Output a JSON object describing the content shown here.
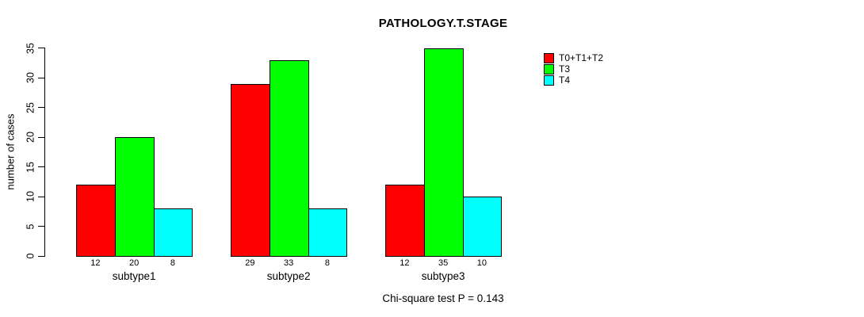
{
  "chart_data": {
    "type": "bar",
    "grouped": true,
    "title": "PATHOLOGY.T.STAGE",
    "categories": [
      "subtype1",
      "subtype2",
      "subtype3"
    ],
    "series": [
      {
        "name": "T0+T1+T2",
        "color": "#FF0000",
        "values": [
          12,
          29,
          12
        ]
      },
      {
        "name": "T3",
        "color": "#00FF00",
        "values": [
          20,
          33,
          35
        ]
      },
      {
        "name": "T4",
        "color": "#00FFFF",
        "values": [
          8,
          8,
          10
        ]
      }
    ],
    "xlabel": "",
    "ylabel": "number of cases",
    "ylim": [
      0,
      35
    ],
    "yticks": [
      0,
      5,
      10,
      15,
      20,
      25,
      30,
      35
    ],
    "bar_value_labels": true,
    "grid": false,
    "legend_position": "right",
    "annotation": "Chi-square test P = 0.143"
  }
}
